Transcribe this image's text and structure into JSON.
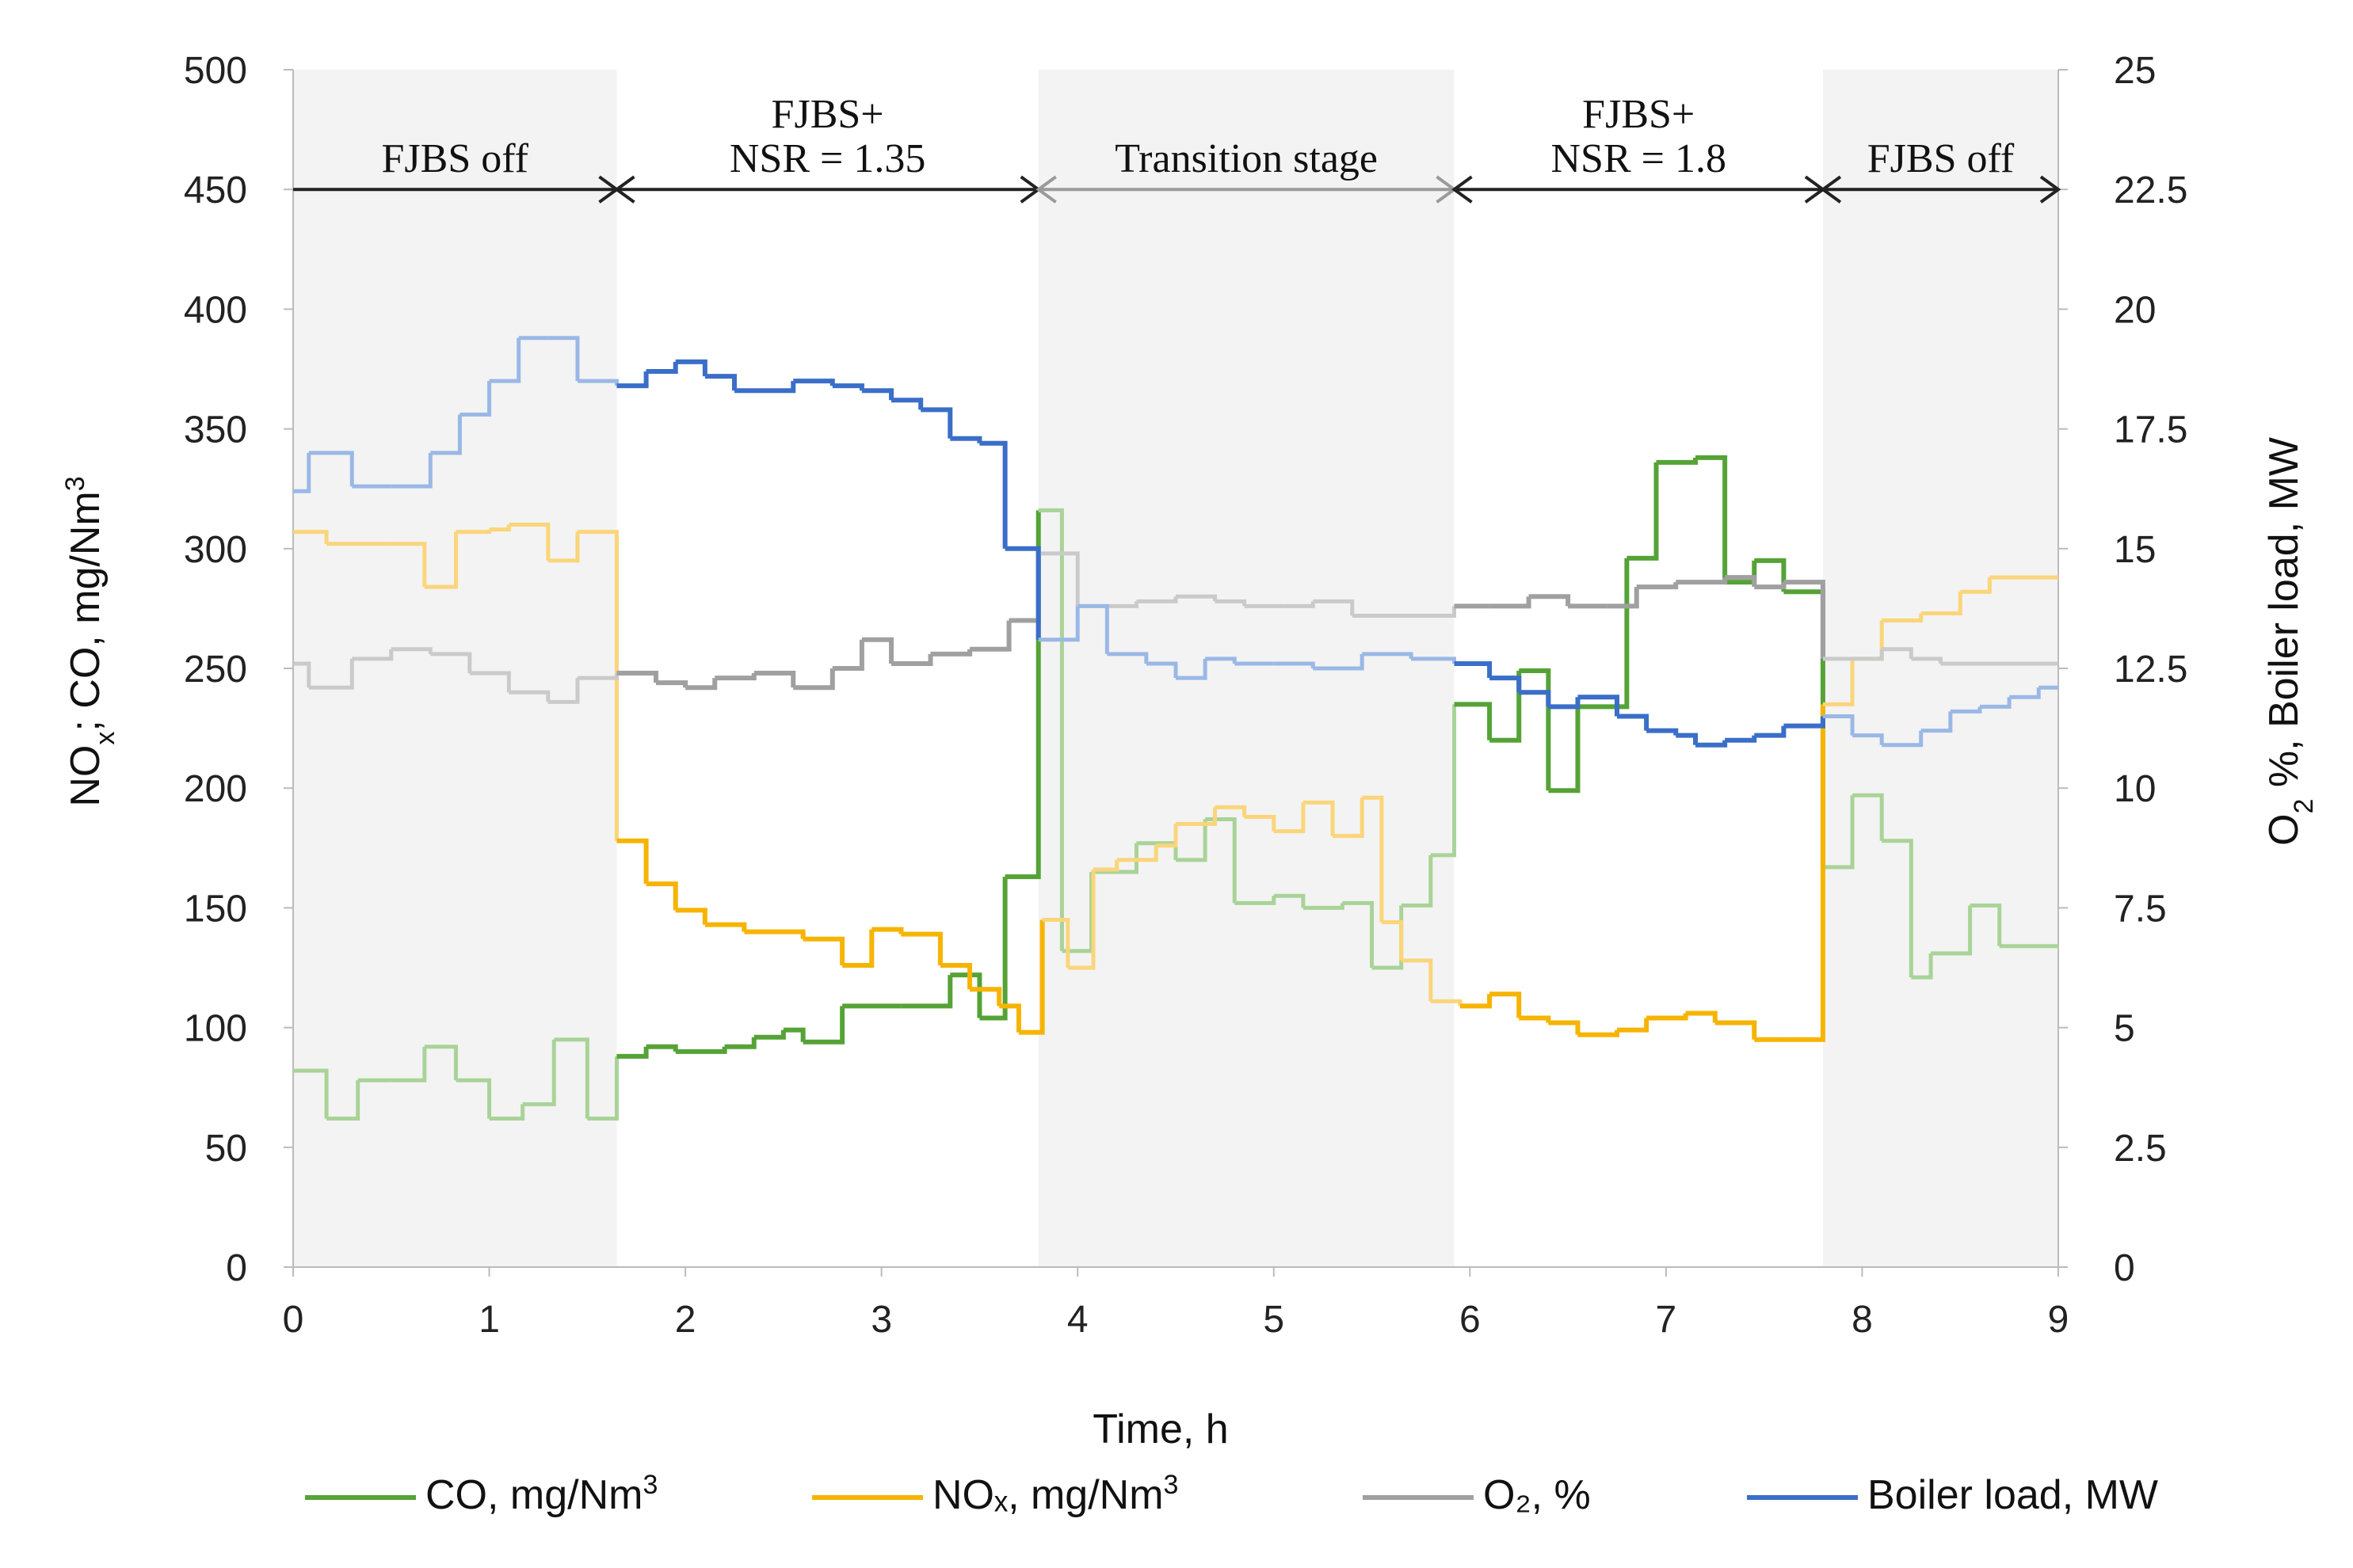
{
  "chart_data": {
    "type": "line",
    "step": true,
    "xlabel": "Time, h",
    "ylabel_left": "NOx; CO, mg/Nm3",
    "ylabel_right": "O2 %, Boiler load, MW",
    "xlim": [
      0,
      9
    ],
    "ylim_left": [
      0,
      500
    ],
    "ylim_right": [
      0,
      25
    ],
    "x_ticks": [
      "0",
      "1",
      "2",
      "3",
      "4",
      "5",
      "6",
      "7",
      "8",
      "9"
    ],
    "y_ticks_left": [
      "0",
      "50",
      "100",
      "150",
      "200",
      "250",
      "300",
      "350",
      "400",
      "450",
      "500"
    ],
    "y_ticks_right": [
      "0",
      "2.5",
      "5",
      "7.5",
      "10",
      "12.5",
      "15",
      "17.5",
      "20",
      "22.5",
      "25"
    ],
    "regions": [
      {
        "label": "FJBS off",
        "x": [
          0,
          1.65
        ],
        "shaded": true
      },
      {
        "label": "FJBS+ NSR = 1.35",
        "x": [
          1.65,
          3.8
        ],
        "shaded": false
      },
      {
        "label": "Transition stage",
        "x": [
          3.8,
          5.92
        ],
        "shaded": true
      },
      {
        "label": "FJBS+ NSR = 1.8",
        "x": [
          5.92,
          7.8
        ],
        "shaded": false
      },
      {
        "label": "FJBS off",
        "x": [
          7.8,
          9
        ],
        "shaded": true
      }
    ],
    "annotations": [
      {
        "lines": [
          "FJBS off"
        ]
      },
      {
        "lines": [
          "FJBS+",
          "NSR = 1.35"
        ]
      },
      {
        "lines": [
          "Transition stage"
        ]
      },
      {
        "lines": [
          "FJBS+",
          "NSR = 1.8"
        ]
      },
      {
        "lines": [
          "FJBS off"
        ]
      }
    ],
    "series": [
      {
        "name": "CO, mg/Nm3",
        "axis": "left",
        "color": "#55a336",
        "color_faded": "#a9d398",
        "points": [
          [
            0,
            82
          ],
          [
            0.17,
            62
          ],
          [
            0.33,
            78
          ],
          [
            0.5,
            78
          ],
          [
            0.67,
            92
          ],
          [
            0.83,
            78
          ],
          [
            1.0,
            62
          ],
          [
            1.17,
            68
          ],
          [
            1.33,
            95
          ],
          [
            1.5,
            62
          ],
          [
            1.65,
            88
          ],
          [
            1.8,
            92
          ],
          [
            1.95,
            90
          ],
          [
            2.2,
            92
          ],
          [
            2.35,
            96
          ],
          [
            2.5,
            99
          ],
          [
            2.6,
            94
          ],
          [
            2.8,
            109
          ],
          [
            3.1,
            109
          ],
          [
            3.35,
            122
          ],
          [
            3.5,
            104
          ],
          [
            3.63,
            163
          ],
          [
            3.8,
            316
          ],
          [
            3.92,
            132
          ],
          [
            4.07,
            165
          ],
          [
            4.3,
            177
          ],
          [
            4.5,
            170
          ],
          [
            4.65,
            187
          ],
          [
            4.8,
            152
          ],
          [
            5.0,
            155
          ],
          [
            5.15,
            150
          ],
          [
            5.35,
            152
          ],
          [
            5.5,
            125
          ],
          [
            5.65,
            151
          ],
          [
            5.8,
            172
          ],
          [
            5.92,
            235
          ],
          [
            6.1,
            220
          ],
          [
            6.25,
            249
          ],
          [
            6.4,
            199
          ],
          [
            6.55,
            234
          ],
          [
            6.8,
            296
          ],
          [
            6.95,
            336
          ],
          [
            7.15,
            338
          ],
          [
            7.3,
            286
          ],
          [
            7.45,
            295
          ],
          [
            7.6,
            282
          ],
          [
            7.8,
            167
          ],
          [
            7.95,
            197
          ],
          [
            8.1,
            178
          ],
          [
            8.25,
            121
          ],
          [
            8.35,
            131
          ],
          [
            8.55,
            151
          ],
          [
            8.7,
            134
          ],
          [
            9.0,
            134
          ]
        ]
      },
      {
        "name": "NOx, mg/Nm3",
        "axis": "left",
        "color": "#f6b400",
        "color_faded": "#fad57a",
        "points": [
          [
            0,
            307
          ],
          [
            0.17,
            302
          ],
          [
            0.5,
            302
          ],
          [
            0.67,
            284
          ],
          [
            0.83,
            307
          ],
          [
            1.0,
            308
          ],
          [
            1.1,
            310
          ],
          [
            1.3,
            295
          ],
          [
            1.45,
            307
          ],
          [
            1.65,
            178
          ],
          [
            1.8,
            160
          ],
          [
            1.95,
            149
          ],
          [
            2.1,
            143
          ],
          [
            2.3,
            140
          ],
          [
            2.6,
            137
          ],
          [
            2.8,
            126
          ],
          [
            2.95,
            141
          ],
          [
            3.1,
            139
          ],
          [
            3.3,
            126
          ],
          [
            3.45,
            116
          ],
          [
            3.6,
            109
          ],
          [
            3.7,
            98
          ],
          [
            3.82,
            145
          ],
          [
            3.95,
            125
          ],
          [
            4.08,
            166
          ],
          [
            4.2,
            170
          ],
          [
            4.4,
            176
          ],
          [
            4.5,
            185
          ],
          [
            4.7,
            192
          ],
          [
            4.85,
            188
          ],
          [
            5.0,
            182
          ],
          [
            5.15,
            194
          ],
          [
            5.3,
            180
          ],
          [
            5.45,
            196
          ],
          [
            5.55,
            144
          ],
          [
            5.65,
            128
          ],
          [
            5.8,
            111
          ],
          [
            5.95,
            109
          ],
          [
            6.1,
            114
          ],
          [
            6.25,
            104
          ],
          [
            6.4,
            102
          ],
          [
            6.55,
            97
          ],
          [
            6.75,
            99
          ],
          [
            6.9,
            104
          ],
          [
            7.1,
            106
          ],
          [
            7.25,
            102
          ],
          [
            7.45,
            95
          ],
          [
            7.6,
            95
          ],
          [
            7.8,
            235
          ],
          [
            7.95,
            254
          ],
          [
            8.1,
            270
          ],
          [
            8.3,
            273
          ],
          [
            8.5,
            282
          ],
          [
            8.65,
            288
          ],
          [
            9.0,
            288
          ]
        ]
      },
      {
        "name": "O2, %",
        "axis": "right",
        "color": "#a0a0a0",
        "color_faded": "#cacaca",
        "points": [
          [
            0,
            12.6
          ],
          [
            0.08,
            12.1
          ],
          [
            0.3,
            12.7
          ],
          [
            0.5,
            12.9
          ],
          [
            0.7,
            12.8
          ],
          [
            0.9,
            12.4
          ],
          [
            1.1,
            12.0
          ],
          [
            1.3,
            11.8
          ],
          [
            1.45,
            12.3
          ],
          [
            1.65,
            12.4
          ],
          [
            1.85,
            12.2
          ],
          [
            2.0,
            12.1
          ],
          [
            2.15,
            12.3
          ],
          [
            2.35,
            12.4
          ],
          [
            2.55,
            12.1
          ],
          [
            2.75,
            12.5
          ],
          [
            2.9,
            13.1
          ],
          [
            3.05,
            12.6
          ],
          [
            3.25,
            12.8
          ],
          [
            3.45,
            12.9
          ],
          [
            3.65,
            13.5
          ],
          [
            3.8,
            14.9
          ],
          [
            4.0,
            13.8
          ],
          [
            4.3,
            13.9
          ],
          [
            4.5,
            14.0
          ],
          [
            4.7,
            13.9
          ],
          [
            4.85,
            13.8
          ],
          [
            5.05,
            13.8
          ],
          [
            5.2,
            13.9
          ],
          [
            5.4,
            13.6
          ],
          [
            5.7,
            13.6
          ],
          [
            5.92,
            13.8
          ],
          [
            6.1,
            13.8
          ],
          [
            6.3,
            14.0
          ],
          [
            6.5,
            13.8
          ],
          [
            6.7,
            13.8
          ],
          [
            6.85,
            14.2
          ],
          [
            7.05,
            14.3
          ],
          [
            7.3,
            14.4
          ],
          [
            7.45,
            14.2
          ],
          [
            7.6,
            14.3
          ],
          [
            7.8,
            12.7
          ],
          [
            7.95,
            12.7
          ],
          [
            8.1,
            12.9
          ],
          [
            8.25,
            12.7
          ],
          [
            8.4,
            12.6
          ],
          [
            8.6,
            12.6
          ],
          [
            8.8,
            12.6
          ],
          [
            9.0,
            12.6
          ]
        ]
      },
      {
        "name": "Boiler load, MW",
        "axis": "right",
        "color": "#3a6ec8",
        "color_faded": "#9ab8e6",
        "points": [
          [
            0,
            16.2
          ],
          [
            0.08,
            17.0
          ],
          [
            0.3,
            16.3
          ],
          [
            0.5,
            16.3
          ],
          [
            0.7,
            17.0
          ],
          [
            0.85,
            17.8
          ],
          [
            1.0,
            18.5
          ],
          [
            1.15,
            19.4
          ],
          [
            1.3,
            19.4
          ],
          [
            1.45,
            18.5
          ],
          [
            1.65,
            18.4
          ],
          [
            1.8,
            18.7
          ],
          [
            1.95,
            18.9
          ],
          [
            2.1,
            18.6
          ],
          [
            2.25,
            18.3
          ],
          [
            2.55,
            18.5
          ],
          [
            2.75,
            18.4
          ],
          [
            2.9,
            18.3
          ],
          [
            3.05,
            18.1
          ],
          [
            3.2,
            17.9
          ],
          [
            3.35,
            17.3
          ],
          [
            3.5,
            17.2
          ],
          [
            3.63,
            15.0
          ],
          [
            3.8,
            13.1
          ],
          [
            4.0,
            13.8
          ],
          [
            4.15,
            12.8
          ],
          [
            4.35,
            12.6
          ],
          [
            4.5,
            12.3
          ],
          [
            4.65,
            12.7
          ],
          [
            4.8,
            12.6
          ],
          [
            5.0,
            12.6
          ],
          [
            5.2,
            12.5
          ],
          [
            5.45,
            12.8
          ],
          [
            5.7,
            12.7
          ],
          [
            5.92,
            12.6
          ],
          [
            6.1,
            12.3
          ],
          [
            6.25,
            12.0
          ],
          [
            6.4,
            11.7
          ],
          [
            6.55,
            11.9
          ],
          [
            6.75,
            11.5
          ],
          [
            6.9,
            11.2
          ],
          [
            7.05,
            11.1
          ],
          [
            7.15,
            10.9
          ],
          [
            7.3,
            11.0
          ],
          [
            7.45,
            11.1
          ],
          [
            7.6,
            11.3
          ],
          [
            7.8,
            11.5
          ],
          [
            7.95,
            11.1
          ],
          [
            8.1,
            10.9
          ],
          [
            8.3,
            11.2
          ],
          [
            8.45,
            11.6
          ],
          [
            8.6,
            11.7
          ],
          [
            8.75,
            11.9
          ],
          [
            8.9,
            12.1
          ],
          [
            9.0,
            12.1
          ]
        ]
      }
    ],
    "legend": [
      {
        "label": "CO, mg/Nm",
        "sup": "3",
        "color": "#55a336"
      },
      {
        "label": "NOₓ, mg/Nm",
        "sup": "3",
        "color": "#f6b400"
      },
      {
        "label": "O₂, %",
        "sup": "",
        "color": "#a0a0a0"
      },
      {
        "label": "Boiler load, MW",
        "sup": "",
        "color": "#3a6ec8"
      }
    ],
    "legend_position": "bottom"
  }
}
